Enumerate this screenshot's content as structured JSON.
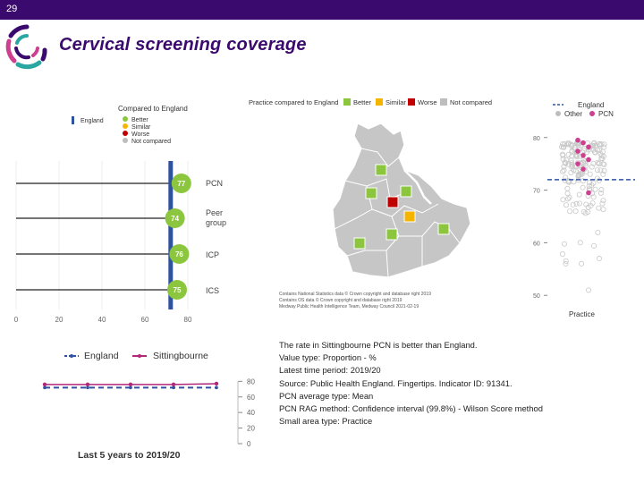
{
  "header": {
    "slide_number": "29",
    "title": "Cervical screening coverage"
  },
  "colors": {
    "brand": "#3b0a6e",
    "better": "#8cc63f",
    "similar": "#f5b400",
    "worse": "#c00000",
    "not_compared": "#bdbdbd",
    "england": "#2f52a0",
    "pcn": "#cf3f8f"
  },
  "compare_chart": {
    "legend_title": "Compared to England",
    "legend_england": "England",
    "legend_items": [
      "Better",
      "Similar",
      "Worse",
      "Not compared"
    ],
    "england_value": 72,
    "xlim": [
      0,
      80
    ],
    "x_ticks": [
      "0",
      "20",
      "40",
      "60",
      "80"
    ],
    "rows": [
      {
        "label": "PCN",
        "value": 77,
        "value_label": "77"
      },
      {
        "label_line1": "Peer",
        "label_line2": "group",
        "value": 74,
        "value_label": "74"
      },
      {
        "label": "ICP",
        "value": 76,
        "value_label": "76"
      },
      {
        "label": "ICS",
        "value": 75,
        "value_label": "75"
      }
    ]
  },
  "map": {
    "legend_title": "Practice compared to England",
    "legend_better": "Better",
    "legend_similar": "Similar",
    "legend_worse": "Worse",
    "legend_not_compared": "Not compared",
    "credits": [
      "Contains National Statistics data © Crown copyright and database right 2019",
      "Contains OS data © Crown copyright and database right 2019",
      "Medway Public Health Intelligence Team, Medway Council 2021-02-19"
    ]
  },
  "dot_plot": {
    "legend_england": "England",
    "legend_other": "Other",
    "legend_pcn": "PCN",
    "y_ticks": [
      "80",
      "70",
      "60",
      "50"
    ],
    "ylim": [
      48,
      82
    ],
    "england_value": 72,
    "x_label": "Practice"
  },
  "trend_chart": {
    "legend_england": "England",
    "legend_sittingbourne": "Sittingbourne",
    "y_ticks": [
      "80",
      "60",
      "40",
      "20",
      "0"
    ],
    "ylim": [
      0,
      85
    ],
    "caption": "Last 5 years to 2019/20",
    "england_values": [
      72,
      72,
      72,
      72,
      72
    ],
    "sittingbourne_values": [
      76,
      76,
      76,
      76,
      77
    ]
  },
  "info": {
    "lines": [
      "The rate in Sittingbourne PCN is better than England.",
      "Value type: Proportion - %",
      "Latest time period: 2019/20",
      "Source: Public Health England. Fingertips. Indicator ID: 91341.",
      "PCN average type: Mean",
      "PCN RAG method: Confidence interval (99.8%) - Wilson Score method",
      "Small area type: Practice"
    ]
  }
}
